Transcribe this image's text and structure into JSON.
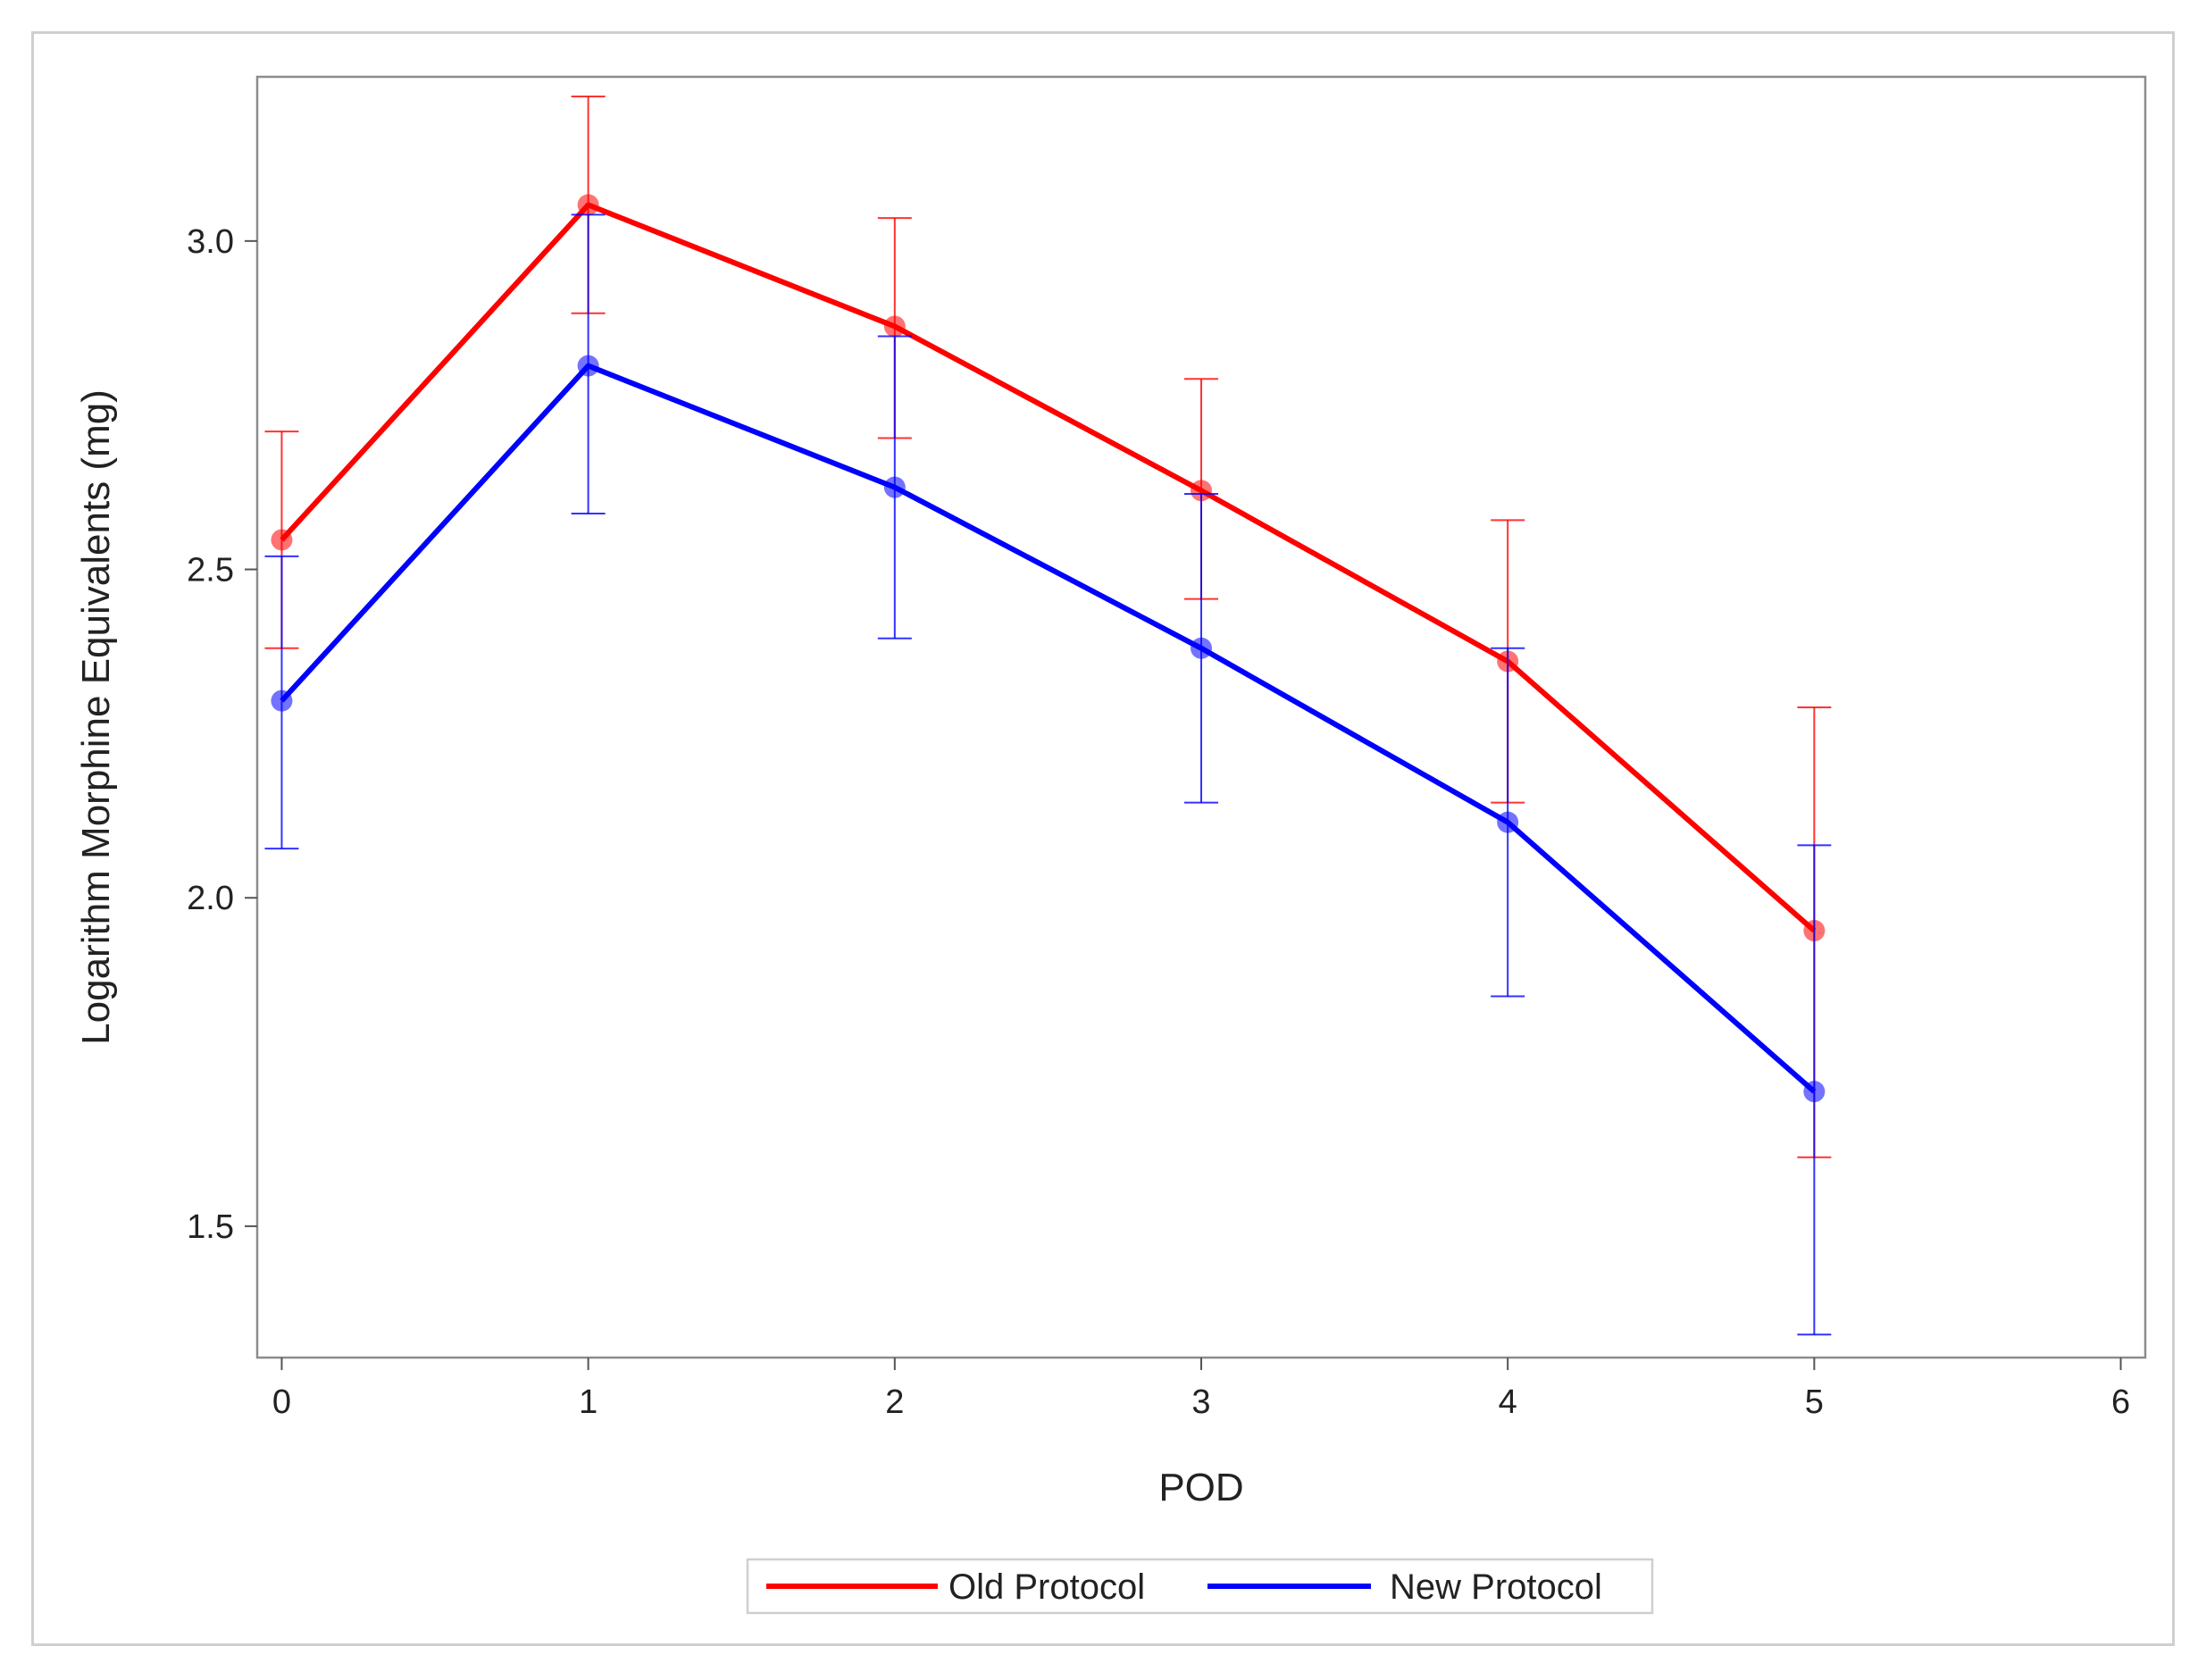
{
  "chart_data": {
    "type": "line",
    "title": "",
    "xlabel": "POD",
    "ylabel": "Logarithm Morphine Equivalents (mg)",
    "xlim": [
      -0.08,
      6.08
    ],
    "ylim": [
      1.3,
      3.25
    ],
    "xticks": [
      0,
      1,
      2,
      3,
      4,
      5,
      6
    ],
    "yticks": [
      1.5,
      2.0,
      2.5,
      3.0
    ],
    "ytick_labels": [
      "1.5",
      "2.0",
      "2.5",
      "3.0"
    ],
    "x": [
      0,
      1,
      2,
      3,
      4,
      5
    ],
    "grid": false,
    "legend_position": "bottom-center",
    "series": [
      {
        "name": "Old Protocol",
        "color": "#ff0000",
        "values": [
          2.545,
          3.055,
          2.87,
          2.62,
          2.36,
          1.95
        ],
        "lower": [
          2.38,
          2.89,
          2.7,
          2.455,
          2.145,
          1.605
        ],
        "upper": [
          2.71,
          3.22,
          3.035,
          2.79,
          2.575,
          2.29
        ]
      },
      {
        "name": "New Protocol",
        "color": "#0000ff",
        "values": [
          2.3,
          2.81,
          2.625,
          2.38,
          2.115,
          1.705
        ],
        "lower": [
          2.075,
          2.585,
          2.395,
          2.145,
          1.85,
          1.335
        ],
        "upper": [
          2.52,
          3.04,
          2.855,
          2.615,
          2.38,
          2.08
        ]
      }
    ]
  }
}
